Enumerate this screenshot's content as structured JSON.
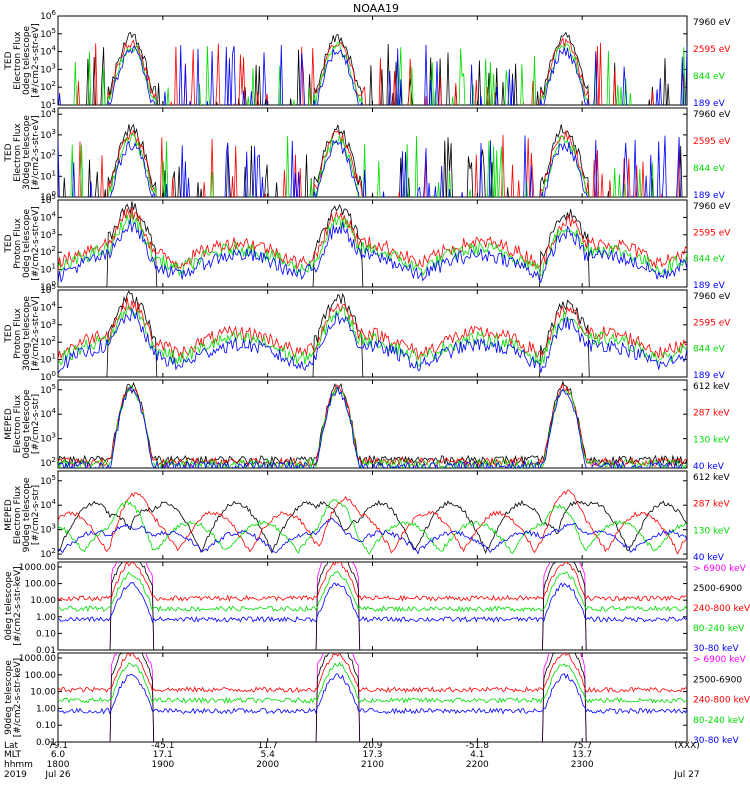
{
  "title": "NOAA19",
  "colors": {
    "black": "#000000",
    "red": "#ff0000",
    "green": "#00dd00",
    "blue": "#0000ff",
    "magenta": "#ff00ff"
  },
  "chart_data": [
    {
      "type": "line",
      "instrument": "TED",
      "ylabel_lines": [
        "TED",
        "Electron Flux",
        "0deg telescope",
        "[#/cm2-s-str-eV]"
      ],
      "y_tick_labels": [
        "10^1",
        "10^2",
        "10^3",
        "10^4",
        "10^5",
        "10^6"
      ],
      "ylog": [
        1,
        6
      ],
      "legend": [
        {
          "label": "7960 eV",
          "color": "black"
        },
        {
          "label": "2595 eV",
          "color": "red"
        },
        {
          "label": "844 eV",
          "color": "green"
        },
        {
          "label": "189 eV",
          "color": "blue"
        }
      ]
    },
    {
      "type": "line",
      "instrument": "TED",
      "ylabel_lines": [
        "TED",
        "Electron Flux",
        "30deg telescope",
        "[#/cm2-s-str-eV]"
      ],
      "y_tick_labels": [
        "10^0",
        "10^1",
        "10^2",
        "10^3",
        "10^4"
      ],
      "ylog": [
        0,
        4.3
      ],
      "legend": [
        {
          "label": "7960 eV",
          "color": "black"
        },
        {
          "label": "2595 eV",
          "color": "red"
        },
        {
          "label": "844 eV",
          "color": "green"
        },
        {
          "label": "189 eV",
          "color": "blue"
        }
      ]
    },
    {
      "type": "line",
      "instrument": "TED",
      "ylabel_lines": [
        "TED",
        "Proton Flux",
        "0deg telescope",
        "[#/cm2-s-str-eV]"
      ],
      "y_tick_labels": [
        "10^0",
        "10^1",
        "10^2",
        "10^3",
        "10^4",
        "10^5"
      ],
      "ylog": [
        0,
        5
      ],
      "legend": [
        {
          "label": "7960 eV",
          "color": "black"
        },
        {
          "label": "2595 eV",
          "color": "red"
        },
        {
          "label": "844 eV",
          "color": "green"
        },
        {
          "label": "189 eV",
          "color": "blue"
        }
      ]
    },
    {
      "type": "line",
      "instrument": "TED",
      "ylabel_lines": [
        "TED",
        "Proton Flux",
        "30deg telescope",
        "[#/cm2-s-str-eV]"
      ],
      "y_tick_labels": [
        "10^0",
        "10^1",
        "10^2",
        "10^3",
        "10^4",
        "10^5"
      ],
      "ylog": [
        0,
        5
      ],
      "legend": [
        {
          "label": "7960 eV",
          "color": "black"
        },
        {
          "label": "2595 eV",
          "color": "red"
        },
        {
          "label": "844 eV",
          "color": "green"
        },
        {
          "label": "189 eV",
          "color": "blue"
        }
      ]
    },
    {
      "type": "line",
      "instrument": "MEPED",
      "ylabel_lines": [
        "MEPED",
        "Electron Flux",
        "0deg telescope",
        "[#/cm2-s-str]"
      ],
      "y_tick_labels": [
        "10^2",
        "10^3",
        "10^4",
        "10^5"
      ],
      "ylog": [
        1.8,
        5.4
      ],
      "legend": [
        {
          "label": "612 keV",
          "color": "black"
        },
        {
          "label": "287 keV",
          "color": "red"
        },
        {
          "label": "130 keV",
          "color": "green"
        },
        {
          "label": "40 keV",
          "color": "blue"
        }
      ]
    },
    {
      "type": "line",
      "instrument": "MEPED",
      "ylabel_lines": [
        "MEPED",
        "Electron Flux",
        "90deg telescope",
        "[#/cm2-s-str]"
      ],
      "y_tick_labels": [
        "10^2",
        "10^3",
        "10^4",
        "10^5"
      ],
      "ylog": [
        1.8,
        5.4
      ],
      "legend": [
        {
          "label": "612 keV",
          "color": "black"
        },
        {
          "label": "287 keV",
          "color": "red"
        },
        {
          "label": "130 keV",
          "color": "green"
        },
        {
          "label": "40 keV",
          "color": "blue"
        }
      ]
    },
    {
      "type": "line",
      "instrument": "MEPED",
      "ylabel_lines": [
        "0deg telescope",
        "[#/cm2-s-str-keV]"
      ],
      "y_tick_labels": [
        "0.01",
        "0.10",
        "1.00",
        "10.00",
        "100.00",
        "1000.00"
      ],
      "ylog": [
        -2,
        3.3
      ],
      "legend": [
        {
          "label": "> 6900 keV",
          "color": "magenta"
        },
        {
          "label": "2500-6900",
          "color": "black"
        },
        {
          "label": "240-800 keV",
          "color": "red"
        },
        {
          "label": "80-240 keV",
          "color": "green"
        },
        {
          "label": "30-80 keV",
          "color": "blue"
        }
      ]
    },
    {
      "type": "line",
      "instrument": "MEPED",
      "ylabel_lines": [
        "90deg telescope",
        "[#/cm2-s-str-keV]"
      ],
      "y_tick_labels": [
        "0.01",
        "0.10",
        "1.00",
        "10.00",
        "100.00",
        "1000.00"
      ],
      "ylog": [
        -2,
        3.3
      ],
      "legend": [
        {
          "label": "> 6900 keV",
          "color": "magenta"
        },
        {
          "label": "2500-6900",
          "color": "black"
        },
        {
          "label": "240-800 keV",
          "color": "red"
        },
        {
          "label": "80-240 keV",
          "color": "green"
        },
        {
          "label": "30-80 keV",
          "color": "blue"
        }
      ]
    }
  ],
  "x_axis": {
    "tick_times": [
      "1800",
      "1900",
      "2000",
      "2100",
      "2200",
      "2300"
    ],
    "minutes": [
      0,
      60,
      120,
      180,
      240,
      300,
      360
    ],
    "xlim_minutes": [
      0,
      360
    ],
    "rows": [
      {
        "label": "Lat",
        "values": [
          "79.1",
          "-45.1",
          "11.7",
          "20.9",
          "-51.8",
          "75.7",
          "(XXX)"
        ]
      },
      {
        "label": "MLT",
        "values": [
          "6.0",
          "17.1",
          "5.4",
          "17.3",
          "4.1",
          "13.7",
          ""
        ]
      },
      {
        "label": "hhmm",
        "values": [
          "1800",
          "1900",
          "2000",
          "2100",
          "2200",
          "2300",
          ""
        ]
      },
      {
        "label": "2019",
        "values": [
          "Jul 26",
          "",
          "",
          "",
          "",
          "",
          "Jul 27"
        ]
      }
    ]
  }
}
